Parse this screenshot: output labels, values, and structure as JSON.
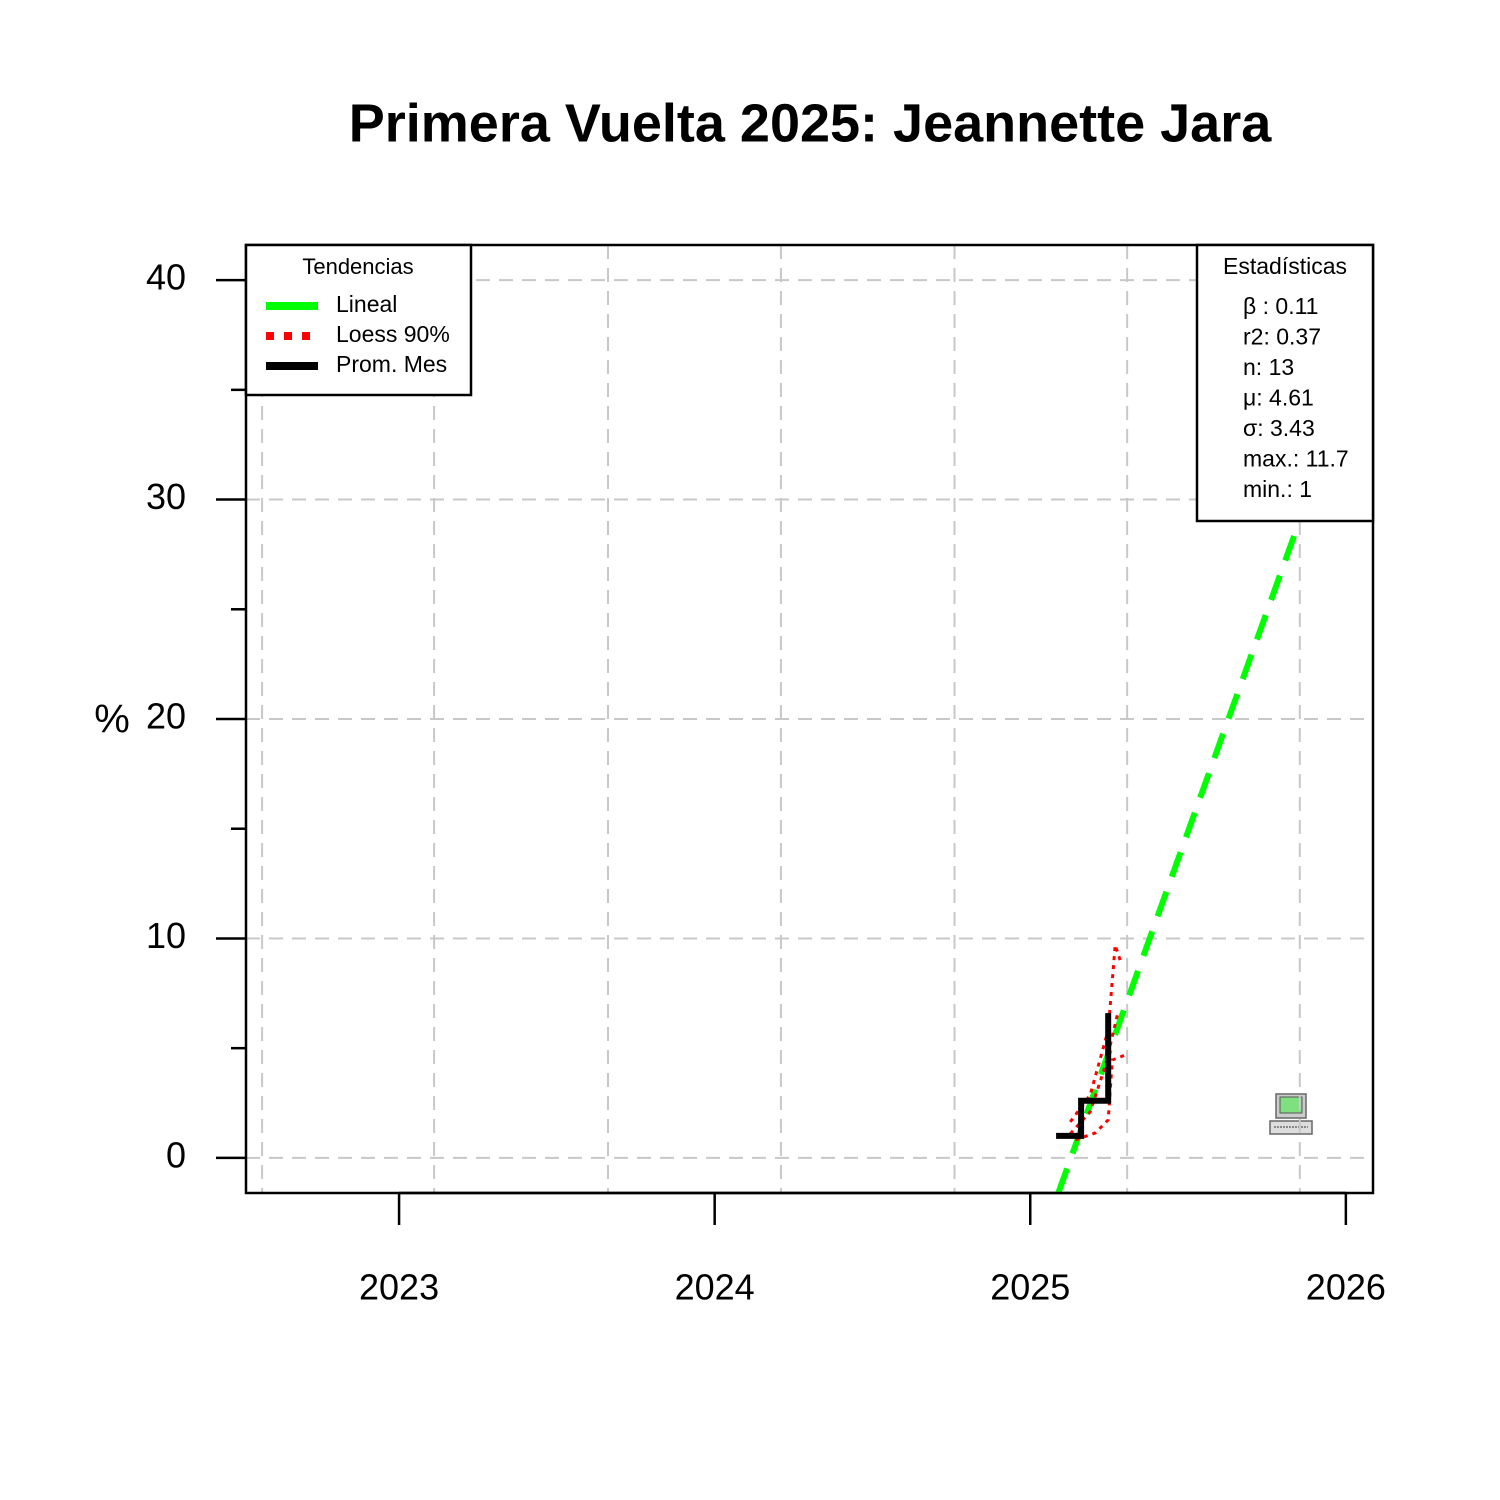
{
  "chart_data": {
    "type": "line",
    "title": "Primera Vuelta 2025: Jeannette Jara",
    "y_label": "%",
    "xlim": [
      2022.515,
      2026.086
    ],
    "xticks": [
      2023,
      2024,
      2025,
      2026
    ],
    "ylim": [
      -1.6,
      41.6
    ],
    "yticks": [
      0,
      10,
      20,
      30,
      40
    ],
    "y_minor_ticks": [
      5,
      15,
      25,
      35
    ],
    "x_grid": [
      2022.566,
      2023.111,
      2023.662,
      2024.21,
      2024.76,
      2025.307,
      2025.854
    ],
    "grid": true,
    "legend_title": "Tendencias",
    "series": [
      {
        "name": "Lineal",
        "color": "#00ff00",
        "style": "dashed",
        "x": [
          2025.089,
          2025.854
        ],
        "values": [
          -1.6,
          29.07
        ]
      },
      {
        "name": "Loess 90%",
        "color": "#ff0000",
        "style": "dotted",
        "x": [
          2025.127,
          2025.19,
          2025.238,
          2025.279
        ],
        "values": [
          1.1,
          2.1,
          4.2,
          6.7
        ]
      },
      {
        "color": "#ff0000",
        "style": "dotted",
        "x": [
          2025.127,
          2025.19,
          2025.247,
          2025.269,
          2025.285
        ],
        "values": [
          1.64,
          2.87,
          5.83,
          9.7,
          9.0
        ]
      },
      {
        "color": "#ff0000",
        "style": "dotted",
        "x": [
          2025.143,
          2025.206,
          2025.247,
          2025.26,
          2025.301
        ],
        "values": [
          0.82,
          1.14,
          1.73,
          4.46,
          4.69
        ]
      },
      {
        "name": "Prom. Mes",
        "color": "#000000",
        "style": "solid",
        "x": [
          2025.082,
          2025.161,
          2025.161,
          2025.247,
          2025.247
        ],
        "values": [
          1,
          1,
          2.6,
          2.6,
          6.6
        ]
      }
    ],
    "stats_title": "Estadísticas",
    "stats": [
      "β : 0.11",
      "r2: 0.37",
      "n: 13",
      "μ: 4.61",
      "σ: 3.43",
      "max.: 11.7",
      "min.: 1"
    ]
  }
}
